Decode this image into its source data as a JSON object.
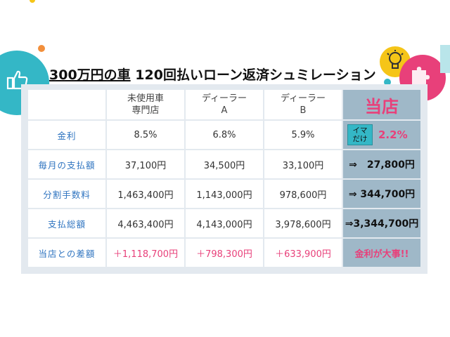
{
  "title": {
    "part1": "300万円の車",
    "part2": " 120回払いローン返済シュミレーション"
  },
  "columns": [
    {
      "key": "mishiyo",
      "lines": [
        "未使用車",
        "専門店"
      ]
    },
    {
      "key": "dealer_a",
      "lines": [
        "ディーラー",
        "A"
      ]
    },
    {
      "key": "dealer_b",
      "lines": [
        "ディーラー",
        "B"
      ]
    },
    {
      "key": "toten",
      "lines": [
        "当店"
      ]
    }
  ],
  "rows": [
    {
      "label": "金利",
      "values": [
        "8.5%",
        "6.8%",
        "5.9%"
      ],
      "store": "2.2%",
      "store_badge": "イマ\nだけ"
    },
    {
      "label": "毎月の支払額",
      "values": [
        "37,100円",
        "34,500円",
        "33,100円"
      ],
      "store": "⇒　27,800円"
    },
    {
      "label": "分割手数料",
      "values": [
        "1,463,400円",
        "1,143,000円",
        "978,600円"
      ],
      "store": "⇒ 344,700円"
    },
    {
      "label": "支払総額",
      "values": [
        "4,463,400円",
        "4,143,000円",
        "3,978,600円"
      ],
      "store": "⇒3,344,700円"
    },
    {
      "label": "当店との差額",
      "values": [
        "＋1,118,700円",
        "＋798,300円",
        "＋633,900円"
      ],
      "store": "金利が大事!!"
    }
  ],
  "colors": {
    "accent_pink": "#e8407a",
    "label_blue": "#2f74c0",
    "store_bg": "#9fb8c8",
    "badge_teal": "#34b7c6"
  },
  "icons": [
    "thumbs-up-icon",
    "light-bulb-icon",
    "puzzle-icon"
  ]
}
